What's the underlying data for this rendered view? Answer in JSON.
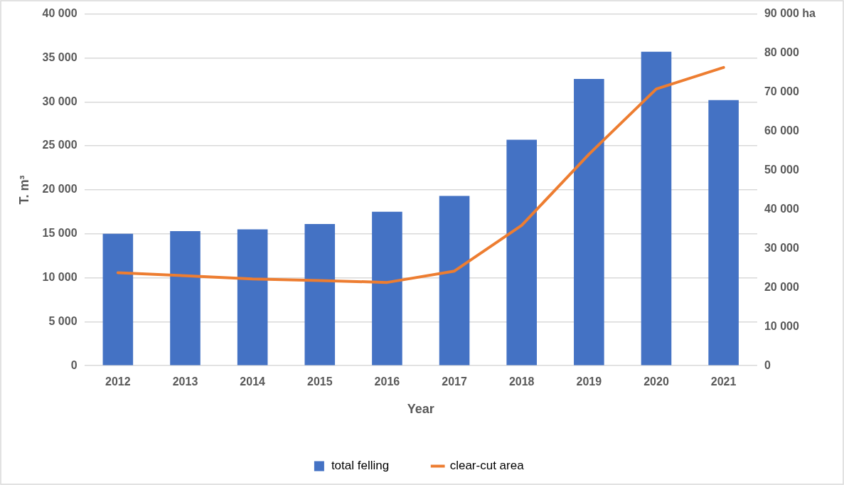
{
  "chart_data": {
    "type": "bar",
    "xlabel": "Year",
    "ylabel": "T. m³",
    "categories": [
      "2012",
      "2013",
      "2014",
      "2015",
      "2016",
      "2017",
      "2018",
      "2019",
      "2020",
      "2021"
    ],
    "series": [
      {
        "name": "total felling",
        "color": "#4472c4",
        "values": [
          15000,
          15300,
          15500,
          16100,
          17500,
          19300,
          25700,
          32600,
          35700,
          30200
        ]
      },
      {
        "name": "clear-cut area",
        "type": "line",
        "axis": "y2",
        "color": "#ed7d31",
        "values": [
          23800,
          23000,
          22200,
          21800,
          21300,
          24200,
          35900,
          54100,
          70800,
          76300
        ]
      }
    ],
    "ylim": [
      0,
      40000
    ],
    "yticks": [
      {
        "value": 0,
        "label": "0"
      },
      {
        "value": 5000,
        "label": "5 000"
      },
      {
        "value": 10000,
        "label": "10 000"
      },
      {
        "value": 15000,
        "label": "15 000"
      },
      {
        "value": 20000,
        "label": "20 000"
      },
      {
        "value": 25000,
        "label": "25 000"
      },
      {
        "value": 30000,
        "label": "30 000"
      },
      {
        "value": 35000,
        "label": "35 000"
      },
      {
        "value": 40000,
        "label": "40 000"
      }
    ],
    "y2lim": [
      0,
      90000
    ],
    "y2ticks": [
      {
        "value": 0,
        "label": "0"
      },
      {
        "value": 10000,
        "label": "10 000"
      },
      {
        "value": 20000,
        "label": "20 000"
      },
      {
        "value": 30000,
        "label": "30 000"
      },
      {
        "value": 40000,
        "label": "40 000"
      },
      {
        "value": 50000,
        "label": "50 000"
      },
      {
        "value": 60000,
        "label": "60 000"
      },
      {
        "value": 70000,
        "label": "70 000"
      },
      {
        "value": 80000,
        "label": "80 000"
      },
      {
        "value": 90000,
        "label": "90 000 ha"
      }
    ],
    "grid": "y",
    "legend": "bottom",
    "marker": "none"
  }
}
